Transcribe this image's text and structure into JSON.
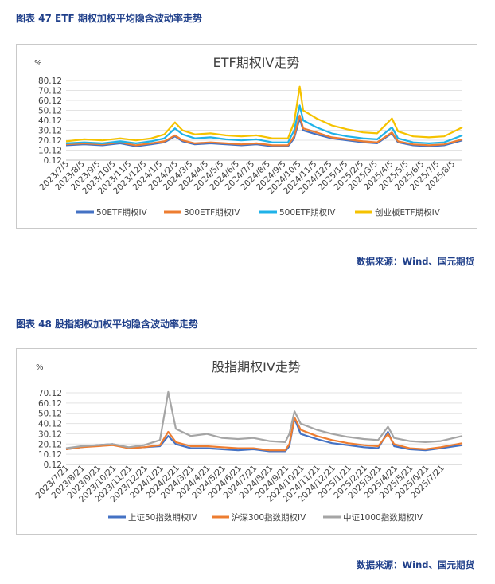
{
  "figure1": {
    "caption": "图表 47 ETF 期权加权平均隐含波动率走势",
    "source": "数据来源：Wind、国元期货"
  },
  "figure2": {
    "caption": "图表 48 股指期权加权平均隐含波动率走势",
    "source": "数据来源：Wind、国元期货"
  },
  "chart_data": [
    {
      "type": "line",
      "title": "ETF期权IV走势",
      "unit_label": "%",
      "ylim": [
        0.12,
        80.12
      ],
      "yticks": [
        0.12,
        10.12,
        20.12,
        30.12,
        40.12,
        50.12,
        60.12,
        70.12,
        80.12
      ],
      "ytick_labels": [
        "0.12",
        "10.12",
        "20.12",
        "30.12",
        "40.12",
        "50.12",
        "60.12",
        "70.12",
        "80.12"
      ],
      "x_start": "2023-07-05",
      "x_end": "2025-08-25",
      "xtick_labels": [
        "2023/7/5",
        "2023/8/5",
        "2023/9/5",
        "2023/10/5",
        "2023/11/5",
        "2023/12/5",
        "2024/1/5",
        "2024/2/5",
        "2024/3/5",
        "2024/4/5",
        "2024/5/5",
        "2024/6/5",
        "2024/7/5",
        "2024/8/5",
        "2024/9/5",
        "2024/10/5",
        "2024/11/5",
        "2024/12/5",
        "2025/1/5",
        "2025/2/5",
        "2025/3/5",
        "2025/4/5",
        "2025/5/5",
        "2025/6/5",
        "2025/7/5",
        "2025/8/5"
      ],
      "legend_position": "bottom",
      "grid": true,
      "series": [
        {
          "name": "50ETF期权IV",
          "color": "#4472c4",
          "points": [
            [
              "2023-07-05",
              15
            ],
            [
              "2023-08-10",
              16
            ],
            [
              "2023-09-15",
              15
            ],
            [
              "2023-10-20",
              17
            ],
            [
              "2023-11-20",
              14
            ],
            [
              "2023-12-20",
              16
            ],
            [
              "2024-01-15",
              18
            ],
            [
              "2024-02-05",
              24
            ],
            [
              "2024-02-20",
              19
            ],
            [
              "2024-03-15",
              16
            ],
            [
              "2024-04-15",
              17
            ],
            [
              "2024-05-15",
              16
            ],
            [
              "2024-06-15",
              15
            ],
            [
              "2024-07-15",
              16
            ],
            [
              "2024-08-15",
              14
            ],
            [
              "2024-09-15",
              14
            ],
            [
              "2024-09-27",
              22
            ],
            [
              "2024-10-08",
              42
            ],
            [
              "2024-10-15",
              30
            ],
            [
              "2024-11-10",
              26
            ],
            [
              "2024-12-10",
              22
            ],
            [
              "2025-01-10",
              20
            ],
            [
              "2025-02-10",
              18
            ],
            [
              "2025-03-10",
              17
            ],
            [
              "2025-04-08",
              27
            ],
            [
              "2025-04-20",
              18
            ],
            [
              "2025-05-20",
              15
            ],
            [
              "2025-06-20",
              14
            ],
            [
              "2025-07-20",
              15
            ],
            [
              "2025-08-25",
              20
            ]
          ]
        },
        {
          "name": "300ETF期权IV",
          "color": "#ed7d31",
          "points": [
            [
              "2023-07-05",
              16
            ],
            [
              "2023-08-10",
              17
            ],
            [
              "2023-09-15",
              16
            ],
            [
              "2023-10-20",
              18
            ],
            [
              "2023-11-20",
              15
            ],
            [
              "2023-12-20",
              17
            ],
            [
              "2024-01-15",
              19
            ],
            [
              "2024-02-05",
              25
            ],
            [
              "2024-02-20",
              20
            ],
            [
              "2024-03-15",
              17
            ],
            [
              "2024-04-15",
              18
            ],
            [
              "2024-05-15",
              17
            ],
            [
              "2024-06-15",
              16
            ],
            [
              "2024-07-15",
              17
            ],
            [
              "2024-08-15",
              15
            ],
            [
              "2024-09-15",
              15
            ],
            [
              "2024-09-27",
              24
            ],
            [
              "2024-10-08",
              45
            ],
            [
              "2024-10-15",
              32
            ],
            [
              "2024-11-10",
              28
            ],
            [
              "2024-12-10",
              23
            ],
            [
              "2025-01-10",
              21
            ],
            [
              "2025-02-10",
              19
            ],
            [
              "2025-03-10",
              18
            ],
            [
              "2025-04-08",
              28
            ],
            [
              "2025-04-20",
              19
            ],
            [
              "2025-05-20",
              16
            ],
            [
              "2025-06-20",
              15
            ],
            [
              "2025-07-20",
              16
            ],
            [
              "2025-08-25",
              21
            ]
          ]
        },
        {
          "name": "500ETF期权IV",
          "color": "#1fb2e8",
          "points": [
            [
              "2023-07-05",
              17
            ],
            [
              "2023-08-10",
              18
            ],
            [
              "2023-09-15",
              17
            ],
            [
              "2023-10-20",
              19
            ],
            [
              "2023-11-20",
              17
            ],
            [
              "2023-12-20",
              19
            ],
            [
              "2024-01-15",
              22
            ],
            [
              "2024-02-05",
              32
            ],
            [
              "2024-02-20",
              26
            ],
            [
              "2024-03-15",
              22
            ],
            [
              "2024-04-15",
              23
            ],
            [
              "2024-05-15",
              21
            ],
            [
              "2024-06-15",
              20
            ],
            [
              "2024-07-15",
              21
            ],
            [
              "2024-08-15",
              18
            ],
            [
              "2024-09-15",
              18
            ],
            [
              "2024-09-27",
              30
            ],
            [
              "2024-10-08",
              55
            ],
            [
              "2024-10-15",
              40
            ],
            [
              "2024-11-10",
              33
            ],
            [
              "2024-12-10",
              27
            ],
            [
              "2025-01-10",
              24
            ],
            [
              "2025-02-10",
              22
            ],
            [
              "2025-03-10",
              21
            ],
            [
              "2025-04-08",
              33
            ],
            [
              "2025-04-20",
              22
            ],
            [
              "2025-05-20",
              18
            ],
            [
              "2025-06-20",
              17
            ],
            [
              "2025-07-20",
              18
            ],
            [
              "2025-08-25",
              25
            ]
          ]
        },
        {
          "name": "创业板ETF期权IV",
          "color": "#f5c200",
          "points": [
            [
              "2023-07-05",
              19
            ],
            [
              "2023-08-10",
              21
            ],
            [
              "2023-09-15",
              20
            ],
            [
              "2023-10-20",
              22
            ],
            [
              "2023-11-20",
              20
            ],
            [
              "2023-12-20",
              22
            ],
            [
              "2024-01-15",
              26
            ],
            [
              "2024-02-05",
              38
            ],
            [
              "2024-02-20",
              30
            ],
            [
              "2024-03-15",
              26
            ],
            [
              "2024-04-15",
              27
            ],
            [
              "2024-05-15",
              25
            ],
            [
              "2024-06-15",
              24
            ],
            [
              "2024-07-15",
              25
            ],
            [
              "2024-08-15",
              22
            ],
            [
              "2024-09-15",
              22
            ],
            [
              "2024-09-27",
              38
            ],
            [
              "2024-10-08",
              74
            ],
            [
              "2024-10-15",
              50
            ],
            [
              "2024-11-10",
              42
            ],
            [
              "2024-12-10",
              35
            ],
            [
              "2025-01-10",
              31
            ],
            [
              "2025-02-10",
              28
            ],
            [
              "2025-03-10",
              27
            ],
            [
              "2025-04-08",
              42
            ],
            [
              "2025-04-20",
              29
            ],
            [
              "2025-05-20",
              24
            ],
            [
              "2025-06-20",
              23
            ],
            [
              "2025-07-20",
              24
            ],
            [
              "2025-08-25",
              33
            ]
          ]
        }
      ]
    },
    {
      "type": "line",
      "title": "股指期权IV走势",
      "unit_label": "%",
      "ylim": [
        0.12,
        70.12
      ],
      "yticks": [
        0.12,
        10.12,
        20.12,
        30.12,
        40.12,
        50.12,
        60.12,
        70.12
      ],
      "ytick_labels": [
        "0.12",
        "10.12",
        "20.12",
        "30.12",
        "40.12",
        "50.12",
        "60.12",
        "70.12"
      ],
      "x_start": "2023-07-21",
      "x_end": "2025-08-31",
      "xtick_labels": [
        "2023/7/21",
        "2023/8/21",
        "2023/9/21",
        "2023/10/21",
        "2023/11/21",
        "2023/12/21",
        "2024/1/21",
        "2024/2/21",
        "2024/3/21",
        "2024/4/21",
        "2024/5/21",
        "2024/6/21",
        "2024/7/21",
        "2024/8/21",
        "2024/9/21",
        "2024/10/21",
        "2024/11/21",
        "2024/12/21",
        "2025/1/21",
        "2025/2/21",
        "2025/3/21",
        "2025/4/21",
        "2025/5/21",
        "2025/6/21",
        "2025/7/21"
      ],
      "legend_position": "bottom",
      "grid": true,
      "series": [
        {
          "name": "上证50指数期权IV",
          "color": "#4472c4",
          "points": [
            [
              "2023-07-21",
              15
            ],
            [
              "2023-08-20",
              17
            ],
            [
              "2023-09-20",
              19
            ],
            [
              "2023-10-20",
              20
            ],
            [
              "2023-11-20",
              16
            ],
            [
              "2023-12-20",
              17
            ],
            [
              "2024-01-20",
              18
            ],
            [
              "2024-02-05",
              28
            ],
            [
              "2024-02-20",
              20
            ],
            [
              "2024-03-20",
              16
            ],
            [
              "2024-04-20",
              16
            ],
            [
              "2024-05-20",
              15
            ],
            [
              "2024-06-20",
              14
            ],
            [
              "2024-07-20",
              15
            ],
            [
              "2024-08-20",
              13
            ],
            [
              "2024-09-20",
              13
            ],
            [
              "2024-09-28",
              18
            ],
            [
              "2024-10-08",
              45
            ],
            [
              "2024-10-20",
              30
            ],
            [
              "2024-11-20",
              25
            ],
            [
              "2024-12-20",
              21
            ],
            [
              "2025-01-20",
              19
            ],
            [
              "2025-02-20",
              17
            ],
            [
              "2025-03-20",
              16
            ],
            [
              "2025-04-08",
              32
            ],
            [
              "2025-04-20",
              18
            ],
            [
              "2025-05-20",
              15
            ],
            [
              "2025-06-20",
              14
            ],
            [
              "2025-07-20",
              16
            ],
            [
              "2025-08-31",
              19
            ]
          ]
        },
        {
          "name": "沪深300指数期权IV",
          "color": "#ed7d31",
          "points": [
            [
              "2023-07-21",
              15
            ],
            [
              "2023-08-20",
              17
            ],
            [
              "2023-09-20",
              18
            ],
            [
              "2023-10-20",
              19
            ],
            [
              "2023-11-20",
              16
            ],
            [
              "2023-12-20",
              17
            ],
            [
              "2024-01-20",
              19
            ],
            [
              "2024-02-05",
              32
            ],
            [
              "2024-02-20",
              22
            ],
            [
              "2024-03-20",
              18
            ],
            [
              "2024-04-20",
              18
            ],
            [
              "2024-05-20",
              17
            ],
            [
              "2024-06-20",
              16
            ],
            [
              "2024-07-20",
              16
            ],
            [
              "2024-08-20",
              14
            ],
            [
              "2024-09-20",
              14
            ],
            [
              "2024-09-28",
              20
            ],
            [
              "2024-10-08",
              46
            ],
            [
              "2024-10-20",
              34
            ],
            [
              "2024-11-20",
              28
            ],
            [
              "2024-12-20",
              24
            ],
            [
              "2025-01-20",
              21
            ],
            [
              "2025-02-20",
              19
            ],
            [
              "2025-03-20",
              18
            ],
            [
              "2025-04-08",
              30
            ],
            [
              "2025-04-20",
              20
            ],
            [
              "2025-05-20",
              16
            ],
            [
              "2025-06-20",
              15
            ],
            [
              "2025-07-20",
              17
            ],
            [
              "2025-08-31",
              21
            ]
          ]
        },
        {
          "name": "中证1000指数期权IV",
          "color": "#a5a5a5",
          "points": [
            [
              "2023-07-21",
              16
            ],
            [
              "2023-08-20",
              18
            ],
            [
              "2023-09-20",
              19
            ],
            [
              "2023-10-20",
              20
            ],
            [
              "2023-11-20",
              17
            ],
            [
              "2023-12-20",
              19
            ],
            [
              "2024-01-20",
              24
            ],
            [
              "2024-02-05",
              71
            ],
            [
              "2024-02-20",
              35
            ],
            [
              "2024-03-20",
              28
            ],
            [
              "2024-04-20",
              30
            ],
            [
              "2024-05-20",
              26
            ],
            [
              "2024-06-20",
              25
            ],
            [
              "2024-07-20",
              26
            ],
            [
              "2024-08-20",
              23
            ],
            [
              "2024-09-20",
              22
            ],
            [
              "2024-09-28",
              30
            ],
            [
              "2024-10-08",
              52
            ],
            [
              "2024-10-20",
              40
            ],
            [
              "2024-11-20",
              34
            ],
            [
              "2024-12-20",
              30
            ],
            [
              "2025-01-20",
              27
            ],
            [
              "2025-02-20",
              25
            ],
            [
              "2025-03-20",
              24
            ],
            [
              "2025-04-08",
              37
            ],
            [
              "2025-04-20",
              26
            ],
            [
              "2025-05-20",
              23
            ],
            [
              "2025-06-20",
              22
            ],
            [
              "2025-07-20",
              23
            ],
            [
              "2025-08-31",
              28
            ]
          ]
        }
      ]
    }
  ]
}
